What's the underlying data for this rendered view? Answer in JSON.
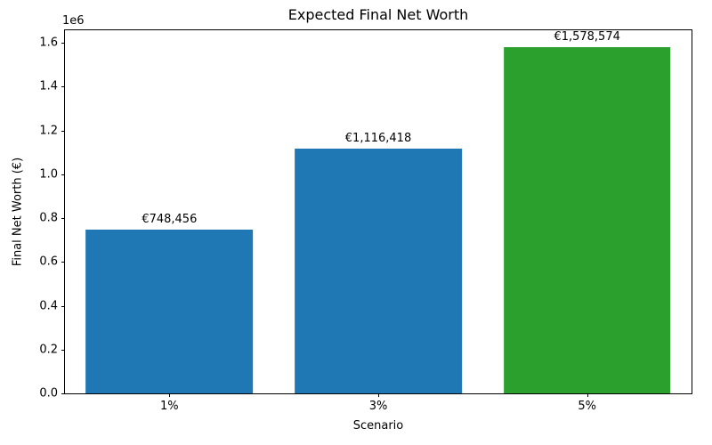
{
  "chart_data": {
    "type": "bar",
    "title": "Expected Final Net Worth",
    "xlabel": "Scenario",
    "ylabel": "Final Net Worth (€)",
    "categories": [
      "1%",
      "3%",
      "5%"
    ],
    "values": [
      748456,
      1116418,
      1578574
    ],
    "bar_labels": [
      "€748,456",
      "€1,116,418",
      "€1,578,574"
    ],
    "bar_colors": [
      "#1f77b4",
      "#1f77b4",
      "#2ca02c"
    ],
    "bar_width_fraction": 0.8,
    "ylim": [
      0,
      1657503
    ],
    "yticks": [
      {
        "label": "0.0",
        "value": 0
      },
      {
        "label": "0.2",
        "value": 200000
      },
      {
        "label": "0.4",
        "value": 400000
      },
      {
        "label": "0.6",
        "value": 600000
      },
      {
        "label": "0.8",
        "value": 800000
      },
      {
        "label": "1.0",
        "value": 1000000
      },
      {
        "label": "1.2",
        "value": 1200000
      },
      {
        "label": "1.4",
        "value": 1400000
      },
      {
        "label": "1.6",
        "value": 1600000
      }
    ],
    "y_offset_label": "1e6",
    "grid": false,
    "legend": null,
    "plot_background": "#ffffff",
    "text_color": "#000000"
  }
}
